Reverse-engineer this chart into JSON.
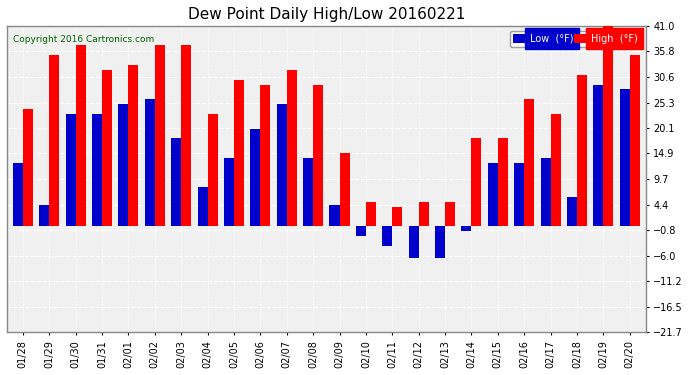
{
  "title": "Dew Point Daily High/Low 20160221",
  "copyright": "Copyright 2016 Cartronics.com",
  "dates": [
    "01/28",
    "01/29",
    "01/30",
    "01/31",
    "02/01",
    "02/02",
    "02/03",
    "02/04",
    "02/05",
    "02/06",
    "02/07",
    "02/08",
    "02/09",
    "02/10",
    "02/11",
    "02/12",
    "02/13",
    "02/14",
    "02/15",
    "02/16",
    "02/17",
    "02/18",
    "02/19",
    "02/20"
  ],
  "high": [
    24.0,
    35.0,
    37.0,
    32.0,
    33.0,
    37.0,
    37.0,
    23.0,
    30.0,
    29.0,
    32.0,
    29.0,
    15.0,
    5.0,
    4.0,
    5.0,
    5.0,
    18.0,
    18.0,
    26.0,
    23.0,
    31.0,
    41.0,
    35.0
  ],
  "low": [
    13.0,
    4.4,
    23.0,
    23.0,
    25.0,
    26.0,
    18.0,
    8.0,
    14.0,
    20.0,
    25.0,
    14.0,
    4.4,
    -2.0,
    -4.0,
    -6.5,
    -6.5,
    -1.0,
    13.0,
    13.0,
    14.0,
    6.0,
    29.0,
    28.0
  ],
  "ylim": [
    -21.7,
    41.0
  ],
  "yticks": [
    -21.7,
    -16.5,
    -11.2,
    -6.0,
    -0.8,
    4.4,
    9.7,
    14.9,
    20.1,
    25.3,
    30.6,
    35.8,
    41.0
  ],
  "high_color": "#FF0000",
  "low_color": "#0000CC",
  "bg_color": "#FFFFFF",
  "plot_bg_color": "#F0F0F0",
  "grid_color": "#FFFFFF",
  "border_color": "#888888",
  "title_fontsize": 11,
  "tick_fontsize": 7,
  "legend_high_label": "High  (°F)",
  "legend_low_label": "Low  (°F)"
}
